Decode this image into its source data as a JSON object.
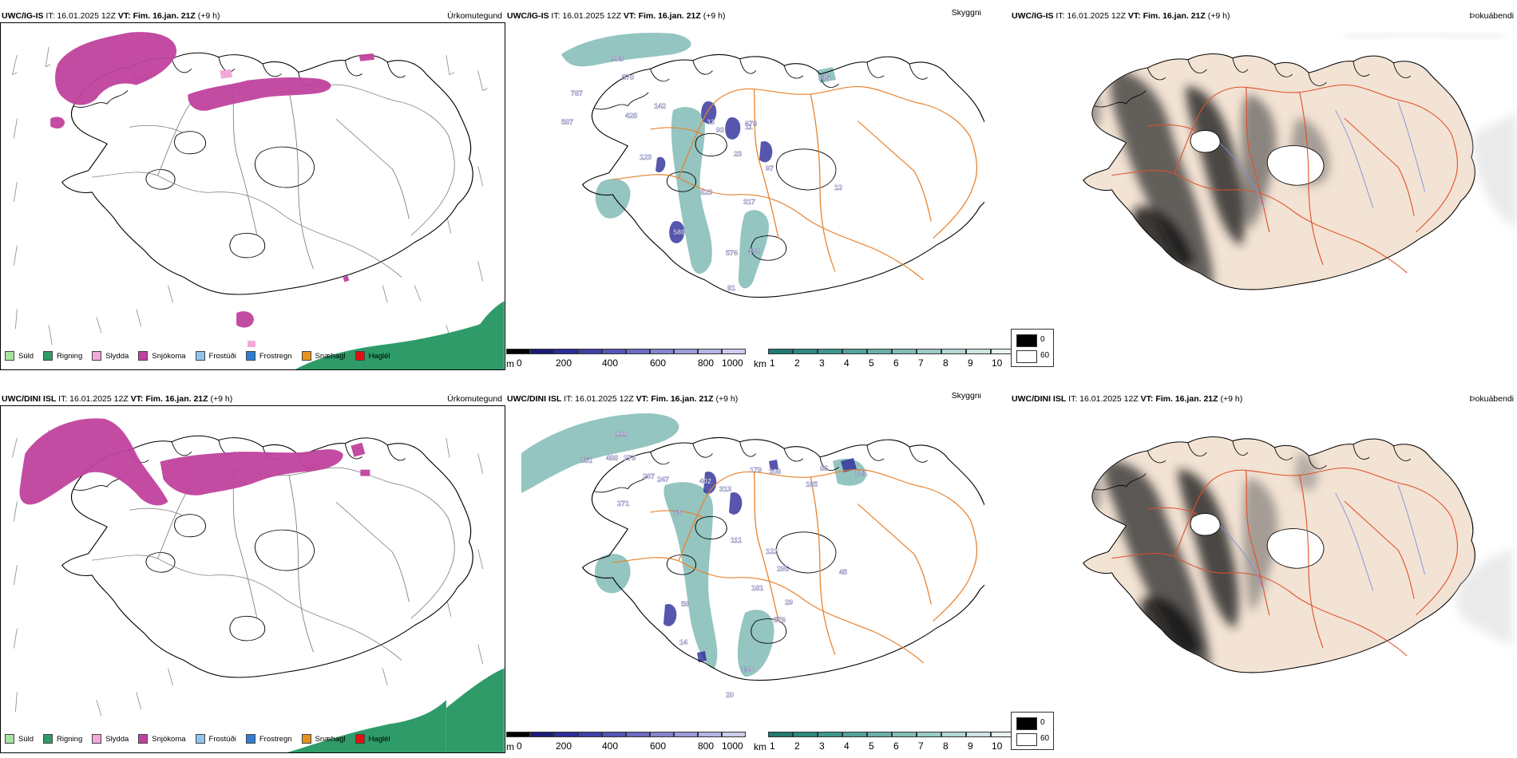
{
  "top_row": {
    "precip_panel": {
      "model": "UWC/IG-IS",
      "it": "IT: 16.01.2025 12Z",
      "vt_label": "VT: Fim. 16.jan. 21Z",
      "offset": "(+9 h)",
      "corner": "Úrkomutegund"
    },
    "cloud_panel": {
      "model": "UWC/IG-IS",
      "it": "IT: 16.01.2025 12Z",
      "vt_label": "VT: Fim. 16.jan. 21Z",
      "offset": "(+9 h)",
      "corner": "Skyggni",
      "labels": [
        "903",
        "570",
        "787",
        "587",
        "428",
        "142",
        "123",
        "33",
        "11",
        "93",
        "23",
        "678",
        "97",
        "116",
        "823",
        "317",
        "580",
        "576",
        "438",
        "81",
        "12"
      ]
    },
    "fog_panel": {
      "model": "UWC/IG-IS",
      "it": "IT: 16.01.2025 12Z",
      "vt_label": "VT: Fim. 16.jan. 21Z",
      "offset": "(+9 h)",
      "corner": "Þokuábendi"
    }
  },
  "bottom_row": {
    "precip_panel": {
      "model": "UWC/DINI ISL",
      "it": "IT: 16.01.2025 12Z",
      "vt_label": "VT: Fim. 16.jan. 21Z",
      "offset": "(+9 h)",
      "corner": "Úrkomutegund"
    },
    "cloud_panel": {
      "model": "UWC/DINI ISL",
      "it": "IT: 16.01.2025 12Z",
      "vt_label": "VT: Fim. 16.jan. 21Z",
      "offset": "(+9 h)",
      "corner": "Skyggni",
      "labels": [
        "999",
        "851",
        "488",
        "273",
        "207",
        "247",
        "402",
        "313",
        "179",
        "208",
        "86",
        "121",
        "185",
        "271",
        "73",
        "111",
        "122",
        "295",
        "181",
        "45",
        "58",
        "29",
        "576",
        "14",
        "130",
        "20"
      ]
    },
    "fog_panel": {
      "model": "UWC/DINI ISL",
      "it": "IT: 16.01.2025 12Z",
      "vt_label": "VT: Fim. 16.jan. 21Z",
      "offset": "(+9 h)",
      "corner": "Þokuábendi"
    }
  },
  "precip_legend": [
    {
      "label": "Súld",
      "color": "#a6e3a1"
    },
    {
      "label": "Rigning",
      "color": "#2e9b68"
    },
    {
      "label": "Slydda",
      "color": "#f2a9d8"
    },
    {
      "label": "Snjókoma",
      "color": "#c0429e"
    },
    {
      "label": "Frostúði",
      "color": "#92c4f0"
    },
    {
      "label": "Frostregn",
      "color": "#2e7fd1"
    },
    {
      "label": "Snæhagl",
      "color": "#e8921e"
    },
    {
      "label": "Haglél",
      "color": "#e01010"
    }
  ],
  "cloudbase_legend": {
    "unit": "m",
    "ticks": [
      "0",
      "200",
      "400",
      "600",
      "800",
      "1000"
    ],
    "colors": [
      "#000000",
      "#1a1a7a",
      "#2c2c9a",
      "#4040aa",
      "#5656b8",
      "#6c6cc4",
      "#8484cf",
      "#9c9cda",
      "#b4b4e4",
      "#ccccee"
    ]
  },
  "visibility_legend": {
    "unit": "km",
    "ticks": [
      "1",
      "2",
      "3",
      "4",
      "5",
      "6",
      "7",
      "8",
      "9",
      "10"
    ],
    "colors": [
      "#1f7a72",
      "#2c8a80",
      "#3d968d",
      "#53a39a",
      "#6ab0a8",
      "#82bdb6",
      "#9bcbc5",
      "#b4d8d3",
      "#cde5e2",
      "#e6f2f0"
    ]
  },
  "fog_legend": {
    "items": [
      {
        "label": "0",
        "color": "#000000"
      },
      {
        "label": "60",
        "color": "#ffffff"
      }
    ]
  },
  "colors": {
    "snow": "#c0429e",
    "rain": "#2e9b68",
    "road": "#e8822e",
    "fog_land": "#f3e3d4",
    "river": "#7b8ee0"
  }
}
